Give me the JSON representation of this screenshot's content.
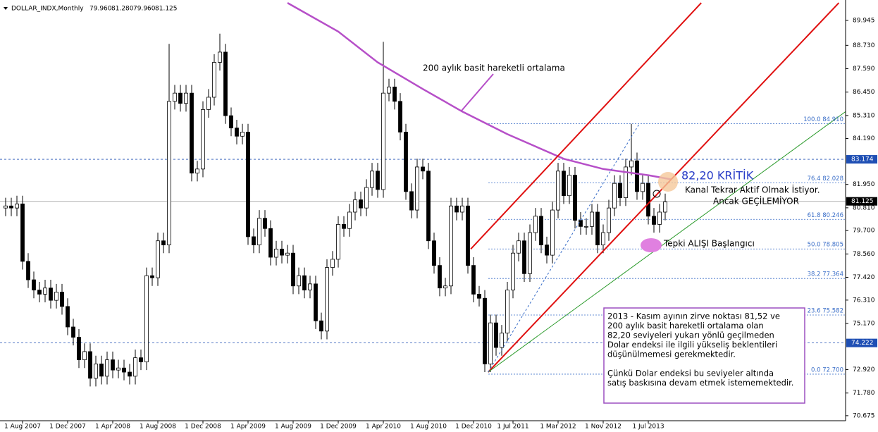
{
  "chart_data": {
    "type": "candlestick",
    "symbol": "DOLLAR_INDX,Monthly",
    "header_values": [
      {
        "value": 79.96,
        "label": "79.960"
      },
      {
        "value": 81.28,
        "label": "81.280"
      },
      {
        "value": 79.96,
        "label": "79.960"
      },
      {
        "value": 81.125,
        "label": "81.125"
      }
    ],
    "categories": [
      null,
      null,
      null,
      "1 Aug 2007",
      null,
      null,
      null,
      null,
      null,
      null,
      null,
      "1 Dec 2007",
      null,
      null,
      null,
      null,
      null,
      null,
      null,
      "1 Apr 2008",
      null,
      null,
      null,
      null,
      null,
      null,
      null,
      "1 Aug 2008",
      null,
      null,
      null,
      null,
      null,
      null,
      null,
      "1 Dec 2008",
      null,
      null,
      null,
      null,
      null,
      null,
      null,
      "1 Apr 2009",
      null,
      null,
      null,
      null,
      null,
      null,
      null,
      "1 Aug 2009",
      null,
      null,
      null,
      null,
      null,
      null,
      null,
      "1 Dec 2009",
      null,
      null,
      null,
      null,
      null,
      null,
      null,
      "1 Apr 2010",
      null,
      null,
      null,
      null,
      null,
      null,
      null,
      "1 Aug 2010",
      null,
      null,
      null,
      null,
      null,
      null,
      null,
      "1 Dec 2010",
      null,
      null,
      null,
      null,
      null,
      null,
      "1 Jul 2011",
      null,
      null,
      null,
      null,
      null,
      null,
      null,
      "1 Mar 2012",
      null,
      null,
      null,
      null,
      null,
      null,
      null,
      "1 Nov 2012",
      null,
      null,
      null,
      null,
      null,
      null,
      null,
      "1 Jul 2013",
      null,
      null,
      null
    ],
    "open": [
      80.8,
      80.9,
      80.8,
      81.0,
      78.2,
      77.3,
      76.8,
      76.6,
      76.9,
      76.3,
      76.7,
      76.0,
      75.0,
      74.5,
      73.4,
      73.8,
      72.5,
      73.2,
      72.6,
      73.4,
      72.9,
      73.0,
      72.8,
      72.6,
      73.5,
      73.3,
      77.5,
      77.4,
      79.2,
      79.0,
      86.0,
      86.4,
      85.9,
      86.4,
      82.5,
      82.7,
      85.6,
      86.2,
      87.9,
      88.4,
      85.3,
      84.7,
      84.3,
      84.5,
      79.4,
      79.0,
      80.3,
      79.8,
      78.4,
      78.8,
      78.5,
      78.6,
      77.0,
      77.5,
      76.8,
      77.1,
      75.3,
      74.8,
      77.9,
      78.3,
      80.0,
      79.8,
      80.6,
      81.2,
      80.8,
      81.8,
      82.6,
      81.7,
      86.4,
      86.7,
      86.0,
      84.5,
      81.6,
      80.7,
      82.8,
      82.6,
      79.2,
      78.0,
      76.9,
      77.0,
      80.9,
      80.6,
      80.9,
      78.0,
      76.6,
      76.4,
      73.2,
      75.2,
      74.0,
      74.7,
      76.8,
      78.6,
      79.2,
      77.6,
      79.6,
      80.4,
      79.0,
      78.5,
      80.7,
      82.6,
      81.4,
      82.4,
      80.2,
      79.9,
      79.9,
      80.6,
      79.0,
      79.6,
      80.8,
      82.0,
      81.3,
      82.8,
      83.1,
      81.6,
      82.0,
      80.4,
      80.0,
      80.6
    ],
    "high": [
      81.3,
      81.3,
      81.4,
      81.4,
      78.6,
      77.7,
      77.2,
      77.3,
      77.3,
      77.1,
      77.1,
      76.4,
      75.4,
      74.9,
      74.2,
      74.2,
      73.6,
      73.6,
      73.8,
      73.8,
      73.4,
      73.4,
      73.2,
      73.9,
      73.9,
      77.9,
      77.9,
      79.6,
      79.6,
      88.8,
      86.8,
      86.8,
      86.8,
      86.8,
      83.1,
      86.0,
      86.6,
      88.3,
      89.3,
      88.8,
      85.7,
      85.1,
      84.9,
      84.9,
      79.8,
      80.7,
      80.7,
      80.2,
      79.2,
      79.2,
      79.0,
      79.0,
      77.9,
      77.9,
      77.5,
      77.5,
      75.7,
      78.3,
      78.7,
      80.4,
      80.4,
      81.0,
      81.6,
      81.6,
      82.2,
      83.0,
      83.0,
      88.9,
      87.1,
      87.1,
      86.4,
      84.9,
      82.0,
      83.2,
      83.2,
      83.0,
      79.6,
      78.4,
      77.4,
      81.3,
      81.3,
      81.3,
      81.3,
      78.4,
      77.0,
      76.8,
      75.6,
      75.6,
      75.1,
      77.2,
      79.0,
      79.6,
      79.6,
      80.0,
      80.8,
      80.8,
      79.4,
      81.1,
      83.0,
      83.0,
      82.8,
      82.8,
      80.6,
      80.3,
      81.0,
      81.0,
      80.0,
      81.2,
      82.4,
      82.4,
      83.2,
      84.9,
      83.5,
      82.4,
      82.4,
      80.8,
      81.0,
      81.5
    ],
    "low": [
      80.4,
      80.4,
      80.4,
      77.8,
      76.9,
      76.4,
      76.2,
      76.2,
      75.9,
      75.9,
      75.6,
      74.6,
      74.1,
      73.0,
      73.0,
      72.1,
      72.1,
      72.2,
      72.2,
      72.5,
      72.5,
      72.4,
      72.2,
      72.2,
      72.9,
      72.9,
      77.0,
      77.0,
      78.6,
      78.6,
      85.6,
      85.5,
      85.5,
      82.1,
      82.1,
      82.3,
      85.2,
      85.8,
      87.5,
      84.9,
      84.3,
      83.9,
      83.9,
      79.0,
      78.6,
      78.6,
      79.4,
      78.0,
      78.0,
      78.1,
      78.1,
      76.6,
      76.6,
      76.4,
      76.4,
      74.9,
      74.4,
      74.4,
      77.5,
      77.9,
      79.4,
      79.4,
      80.2,
      80.4,
      80.4,
      81.4,
      81.3,
      81.3,
      86.0,
      85.6,
      84.1,
      81.2,
      80.3,
      80.3,
      82.2,
      78.8,
      77.6,
      76.5,
      76.5,
      76.6,
      80.2,
      80.2,
      77.6,
      76.2,
      76.0,
      72.8,
      72.8,
      73.6,
      73.6,
      74.3,
      76.4,
      78.2,
      77.2,
      77.2,
      79.2,
      78.6,
      78.1,
      78.1,
      80.3,
      81.0,
      81.0,
      79.8,
      79.5,
      79.5,
      79.5,
      78.6,
      78.6,
      79.2,
      80.4,
      80.9,
      80.9,
      82.4,
      81.2,
      81.2,
      80.0,
      79.6,
      79.6,
      80.2
    ],
    "close": [
      80.9,
      80.8,
      81.0,
      78.2,
      77.3,
      76.8,
      76.6,
      76.9,
      76.3,
      76.7,
      76.0,
      75.0,
      74.5,
      73.4,
      73.8,
      72.5,
      73.2,
      72.6,
      73.4,
      72.9,
      73.0,
      72.8,
      72.6,
      73.5,
      73.3,
      77.5,
      77.4,
      79.2,
      79.0,
      86.0,
      86.4,
      85.9,
      86.4,
      82.5,
      82.7,
      85.6,
      86.2,
      87.9,
      88.4,
      85.3,
      84.7,
      84.3,
      84.5,
      79.4,
      79.0,
      80.3,
      79.8,
      78.4,
      78.8,
      78.5,
      78.6,
      77.0,
      77.5,
      76.8,
      77.1,
      75.3,
      74.8,
      77.9,
      78.3,
      80.0,
      79.8,
      80.6,
      81.2,
      80.8,
      81.8,
      82.6,
      81.7,
      86.4,
      86.7,
      86.0,
      84.5,
      81.6,
      80.7,
      82.8,
      82.6,
      79.2,
      78.0,
      76.9,
      77.0,
      80.9,
      80.6,
      80.9,
      78.0,
      76.6,
      76.4,
      73.2,
      75.2,
      74.0,
      74.7,
      76.8,
      78.6,
      79.2,
      77.6,
      79.6,
      80.4,
      79.0,
      78.5,
      80.7,
      82.6,
      81.4,
      82.4,
      80.2,
      79.9,
      79.9,
      80.6,
      79.0,
      79.6,
      80.8,
      82.0,
      81.3,
      82.8,
      83.1,
      81.6,
      82.0,
      80.4,
      80.0,
      80.6,
      81.1
    ],
    "up_color": "#ffffff",
    "down_color": "#000000",
    "wick_color": "#000000",
    "xlim": [
      -1,
      149
    ],
    "ylim": [
      70.43,
      90.94
    ],
    "yticks": [
      89.945,
      {
        "value": 88.73,
        "label": "88.730"
      },
      {
        "value": 87.59,
        "label": "87.590"
      },
      {
        "value": 86.45,
        "label": "86.450"
      },
      {
        "value": 85.31,
        "label": "85.310"
      },
      {
        "value": 84.19,
        "label": "84.190"
      },
      {
        "value": 81.95,
        "label": "81.950"
      },
      {
        "value": 80.81,
        "label": "80.810"
      },
      {
        "value": 79.7,
        "label": "79.700"
      },
      {
        "value": 78.56,
        "label": "78.560"
      },
      {
        "value": 77.42,
        "label": "77.420"
      },
      {
        "value": 76.31,
        "label": "76.310"
      },
      {
        "value": 75.17,
        "label": "75.170"
      },
      {
        "value": 72.92,
        "label": "72.920"
      },
      {
        "value": 71.78,
        "label": "71.780"
      },
      70.675
    ],
    "grid": false,
    "price_levels": [
      {
        "value": 83.174,
        "color": "#1f4fb4",
        "style": "dotted"
      },
      {
        "value": 74.222,
        "color": "#1f4fb4",
        "style": "dotted"
      },
      {
        "value": 81.125,
        "color": "#000000",
        "style": "solid"
      }
    ],
    "fibonacci": [
      {
        "value": 72.7,
        "label": "0.0 72.700"
      },
      {
        "value": 75.582,
        "label": "23.6 75.582"
      },
      {
        "value": 77.364,
        "label": "38.2 77.364"
      },
      {
        "value": 78.805,
        "label": "50.0 78.805"
      },
      {
        "value": 80.246,
        "label": "61.8 80.246"
      },
      {
        "value": 82.028,
        "label": "76.4 82.028"
      },
      {
        "value": 84.91,
        "label": "100.0 84.910"
      }
    ],
    "fib_start": 85.6,
    "fib_color": "#3a6ec8",
    "overlays": [
      {
        "color": "#b64fc8",
        "width": 2.5,
        "points": [
          [
            50,
            90.8
          ],
          [
            59,
            89.4
          ],
          [
            66,
            87.9
          ],
          [
            74,
            86.6
          ],
          [
            81,
            85.5
          ],
          [
            89,
            84.4
          ],
          [
            99,
            83.2
          ],
          [
            106,
            82.7
          ],
          [
            114,
            82.4
          ],
          [
            118,
            82.2
          ]
        ]
      },
      {
        "color": "#e01010",
        "width": 2,
        "points": [
          [
            82.5,
            78.8
          ],
          [
            123.4,
            90.8
          ]
        ]
      },
      {
        "color": "#e01010",
        "width": 2,
        "points": [
          [
            85.6,
            72.8
          ],
          [
            147.8,
            90.8
          ]
        ]
      },
      {
        "color": "#2a9a2a",
        "width": 1,
        "points": [
          [
            85.6,
            72.8
          ],
          [
            154,
            86.5
          ]
        ]
      },
      {
        "color": "#3a6ec8",
        "width": 1,
        "dash": true,
        "points": [
          [
            85.6,
            72.8
          ],
          [
            112.4,
            84.9
          ]
        ]
      }
    ],
    "annotations": {
      "ma_label": "200 aylık basit hareketli ortalama",
      "critical": "82,20 KRİTİK",
      "channel_1": "Kanal Tekrar Aktif Olmak İstiyor.",
      "channel_2": "Ancak GEÇİLEMİYOR",
      "rebound": "Tepki ALIŞI Başlangıcı",
      "note_1": [
        "2013 - Kasım ayının zirve noktası 81,52 ve",
        "200 aylık basit hareketli ortalama olan",
        "82,20 seviyeleri yukarı yönlü geçilmeden",
        "Dolar endeksi ile ilgili yükseliş beklentileri",
        "düşünülmemesi gerekmektedir."
      ],
      "note_2": [
        "Çünkü Dolar endeksi bu seviyeler altında",
        "satış baskısına devam etmek istememektedir."
      ]
    }
  }
}
